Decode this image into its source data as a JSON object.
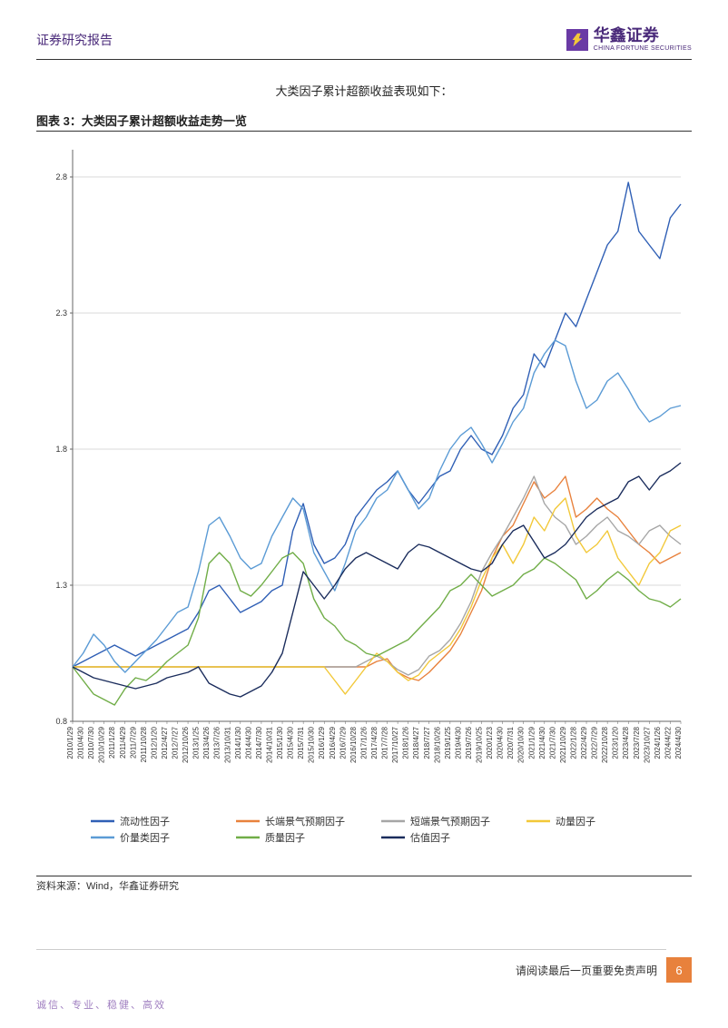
{
  "header": {
    "report_type": "证券研究报告",
    "logo_cn": "华鑫证券",
    "logo_en": "CHINA FORTUNE SECURITIES"
  },
  "intro": "大类因子累计超额收益表现如下：",
  "chart": {
    "title": "图表 3：大类因子累计超额收益走势一览",
    "type": "line",
    "ylim": [
      0.8,
      2.9
    ],
    "yticks": [
      0.8,
      1.3,
      1.8,
      2.3,
      2.8
    ],
    "ytick_labels": [
      "0.8",
      "1.3",
      "1.8",
      "2.3",
      "2.8"
    ],
    "grid_color": "#d9d9d9",
    "background_color": "#ffffff",
    "axis_color": "#666666",
    "tick_fontsize": 9,
    "xlabel_fontsize": 8,
    "line_width": 1.4,
    "x_labels": [
      "2010/1/29",
      "2010/4/30",
      "2010/7/30",
      "2010/10/29",
      "2011/1/28",
      "2011/4/29",
      "2011/7/29",
      "2011/10/28",
      "2012/1/20",
      "2012/4/27",
      "2012/7/27",
      "2012/10/26",
      "2013/1/25",
      "2013/4/26",
      "2013/7/26",
      "2013/10/31",
      "2014/1/30",
      "2014/4/30",
      "2014/7/30",
      "2014/10/31",
      "2015/1/30",
      "2015/4/30",
      "2015/7/31",
      "2015/10/30",
      "2016/1/29",
      "2016/4/29",
      "2016/7/29",
      "2016/10/28",
      "2017/1/26",
      "2017/4/28",
      "2017/7/28",
      "2017/10/27",
      "2018/1/26",
      "2018/4/27",
      "2018/7/27",
      "2018/10/26",
      "2019/1/25",
      "2019/4/30",
      "2019/7/26",
      "2019/10/25",
      "2020/1/23",
      "2020/4/30",
      "2020/7/31",
      "2020/10/30",
      "2021/1/29",
      "2021/4/30",
      "2021/7/30",
      "2021/10/29",
      "2022/1/28",
      "2022/4/29",
      "2022/7/29",
      "2022/10/28",
      "2023/1/20",
      "2023/4/28",
      "2023/7/28",
      "2023/10/27",
      "2024/1/26",
      "2024/4/22",
      "2024/4/30"
    ],
    "series": [
      {
        "name": "流动性因子",
        "color": "#2f5fb5",
        "values": [
          1.0,
          1.02,
          1.04,
          1.06,
          1.08,
          1.06,
          1.04,
          1.06,
          1.08,
          1.1,
          1.12,
          1.14,
          1.2,
          1.28,
          1.3,
          1.25,
          1.2,
          1.22,
          1.24,
          1.28,
          1.3,
          1.5,
          1.6,
          1.45,
          1.38,
          1.4,
          1.45,
          1.55,
          1.6,
          1.65,
          1.68,
          1.72,
          1.65,
          1.6,
          1.65,
          1.7,
          1.72,
          1.8,
          1.85,
          1.8,
          1.78,
          1.85,
          1.95,
          2.0,
          2.15,
          2.1,
          2.2,
          2.3,
          2.25,
          2.35,
          2.45,
          2.55,
          2.6,
          2.78,
          2.6,
          2.55,
          2.5,
          2.65,
          2.7
        ]
      },
      {
        "name": "长端景气预期因子",
        "color": "#e8813c",
        "values": [
          1.0,
          1.0,
          1.0,
          1.0,
          1.0,
          1.0,
          1.0,
          1.0,
          1.0,
          1.0,
          1.0,
          1.0,
          1.0,
          1.0,
          1.0,
          1.0,
          1.0,
          1.0,
          1.0,
          1.0,
          1.0,
          1.0,
          1.0,
          1.0,
          1.0,
          1.0,
          1.0,
          1.0,
          1.0,
          1.02,
          1.03,
          0.98,
          0.96,
          0.95,
          0.98,
          1.02,
          1.06,
          1.12,
          1.2,
          1.28,
          1.4,
          1.48,
          1.52,
          1.6,
          1.68,
          1.62,
          1.65,
          1.7,
          1.55,
          1.58,
          1.62,
          1.58,
          1.55,
          1.5,
          1.45,
          1.42,
          1.38,
          1.4,
          1.42
        ]
      },
      {
        "name": "短端景气预期因子",
        "color": "#a6a6a6",
        "values": [
          1.0,
          1.0,
          1.0,
          1.0,
          1.0,
          1.0,
          1.0,
          1.0,
          1.0,
          1.0,
          1.0,
          1.0,
          1.0,
          1.0,
          1.0,
          1.0,
          1.0,
          1.0,
          1.0,
          1.0,
          1.0,
          1.0,
          1.0,
          1.0,
          1.0,
          1.0,
          1.0,
          1.0,
          1.02,
          1.04,
          1.02,
          0.99,
          0.97,
          0.99,
          1.04,
          1.06,
          1.1,
          1.16,
          1.24,
          1.35,
          1.42,
          1.48,
          1.55,
          1.62,
          1.7,
          1.6,
          1.55,
          1.52,
          1.45,
          1.48,
          1.52,
          1.55,
          1.5,
          1.48,
          1.45,
          1.5,
          1.52,
          1.48,
          1.45
        ]
      },
      {
        "name": "动量因子",
        "color": "#f2c838",
        "values": [
          1.0,
          1.0,
          1.0,
          1.0,
          1.0,
          1.0,
          1.0,
          1.0,
          1.0,
          1.0,
          1.0,
          1.0,
          1.0,
          1.0,
          1.0,
          1.0,
          1.0,
          1.0,
          1.0,
          1.0,
          1.0,
          1.0,
          1.0,
          1.0,
          1.0,
          0.95,
          0.9,
          0.95,
          1.0,
          1.05,
          1.02,
          0.98,
          0.95,
          0.97,
          1.02,
          1.05,
          1.08,
          1.14,
          1.22,
          1.32,
          1.4,
          1.45,
          1.38,
          1.45,
          1.55,
          1.5,
          1.58,
          1.62,
          1.48,
          1.42,
          1.45,
          1.5,
          1.4,
          1.35,
          1.3,
          1.38,
          1.42,
          1.5,
          1.52
        ]
      },
      {
        "name": "价量类因子",
        "color": "#5b9bd5",
        "values": [
          1.0,
          1.05,
          1.12,
          1.08,
          1.02,
          0.98,
          1.02,
          1.06,
          1.1,
          1.15,
          1.2,
          1.22,
          1.35,
          1.52,
          1.55,
          1.48,
          1.4,
          1.36,
          1.38,
          1.48,
          1.55,
          1.62,
          1.58,
          1.42,
          1.35,
          1.28,
          1.38,
          1.5,
          1.55,
          1.62,
          1.65,
          1.72,
          1.65,
          1.58,
          1.62,
          1.72,
          1.8,
          1.85,
          1.88,
          1.82,
          1.75,
          1.82,
          1.9,
          1.95,
          2.08,
          2.15,
          2.2,
          2.18,
          2.05,
          1.95,
          1.98,
          2.05,
          2.08,
          2.02,
          1.95,
          1.9,
          1.92,
          1.95,
          1.96
        ]
      },
      {
        "name": "质量因子",
        "color": "#70ad47",
        "values": [
          1.0,
          0.95,
          0.9,
          0.88,
          0.86,
          0.92,
          0.96,
          0.95,
          0.98,
          1.02,
          1.05,
          1.08,
          1.18,
          1.38,
          1.42,
          1.38,
          1.28,
          1.26,
          1.3,
          1.35,
          1.4,
          1.42,
          1.38,
          1.25,
          1.18,
          1.15,
          1.1,
          1.08,
          1.05,
          1.04,
          1.06,
          1.08,
          1.1,
          1.14,
          1.18,
          1.22,
          1.28,
          1.3,
          1.34,
          1.3,
          1.26,
          1.28,
          1.3,
          1.34,
          1.36,
          1.4,
          1.38,
          1.35,
          1.32,
          1.25,
          1.28,
          1.32,
          1.35,
          1.32,
          1.28,
          1.25,
          1.24,
          1.22,
          1.25
        ]
      },
      {
        "name": "估值因子",
        "color": "#1a2c5c",
        "values": [
          1.0,
          0.98,
          0.96,
          0.95,
          0.94,
          0.93,
          0.92,
          0.93,
          0.94,
          0.96,
          0.97,
          0.98,
          1.0,
          0.94,
          0.92,
          0.9,
          0.89,
          0.91,
          0.93,
          0.98,
          1.05,
          1.2,
          1.35,
          1.3,
          1.25,
          1.3,
          1.36,
          1.4,
          1.42,
          1.4,
          1.38,
          1.36,
          1.42,
          1.45,
          1.44,
          1.42,
          1.4,
          1.38,
          1.36,
          1.35,
          1.38,
          1.45,
          1.5,
          1.52,
          1.46,
          1.4,
          1.42,
          1.45,
          1.5,
          1.55,
          1.58,
          1.6,
          1.62,
          1.68,
          1.7,
          1.65,
          1.7,
          1.72,
          1.75
        ]
      }
    ],
    "legend_layout": "horizontal"
  },
  "source": "资料来源：Wind，华鑫证券研究",
  "footer": {
    "disclaimer": "请阅读最后一页重要免责声明",
    "page_number": "6",
    "motto": "诚信、专业、稳健、高效"
  }
}
